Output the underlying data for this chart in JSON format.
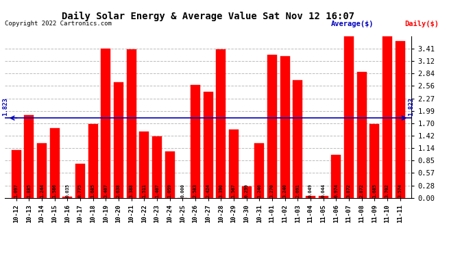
{
  "title": "Daily Solar Energy & Average Value Sat Nov 12 16:07",
  "copyright": "Copyright 2022 Cartronics.com",
  "legend_avg": "Average($)",
  "legend_daily": "Daily($)",
  "average_value": 1.823,
  "categories": [
    "10-12",
    "10-13",
    "10-14",
    "10-15",
    "10-16",
    "10-17",
    "10-18",
    "10-19",
    "10-20",
    "10-21",
    "10-22",
    "10-23",
    "10-24",
    "10-25",
    "10-26",
    "10-27",
    "10-28",
    "10-29",
    "10-30",
    "10-31",
    "11-01",
    "11-02",
    "11-03",
    "11-04",
    "11-05",
    "11-06",
    "11-07",
    "11-08",
    "11-09",
    "11-10",
    "11-11"
  ],
  "values": [
    1.097,
    1.885,
    1.244,
    1.586,
    0.035,
    0.775,
    1.685,
    3.407,
    2.638,
    3.388,
    1.511,
    1.407,
    1.059,
    0.0,
    2.583,
    2.424,
    3.39,
    1.567,
    0.259,
    1.246,
    3.27,
    3.24,
    2.691,
    0.049,
    0.044,
    0.974,
    3.872,
    2.872,
    1.685,
    3.702,
    3.574
  ],
  "bar_color": "#ff0000",
  "avg_line_color": "#0000bb",
  "title_color": "#000000",
  "copyright_color": "#000000",
  "legend_avg_color": "#0000bb",
  "legend_daily_color": "#ff0000",
  "ylim": [
    0.0,
    3.695
  ],
  "yticks": [
    0.0,
    0.28,
    0.57,
    0.85,
    1.14,
    1.42,
    1.7,
    1.99,
    2.27,
    2.56,
    2.84,
    3.12,
    3.41
  ],
  "background_color": "#ffffff",
  "grid_color": "#bbbbbb"
}
